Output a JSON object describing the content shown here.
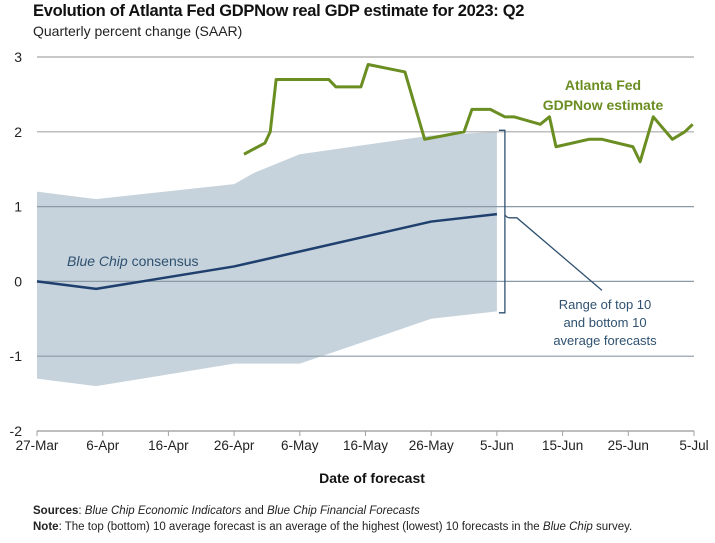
{
  "chart_data": {
    "type": "line",
    "title": "Evolution of Atlanta Fed GDPNow real GDP estimate for 2023: Q2",
    "subtitle": "Quarterly percent change (SAAR)",
    "xlabel": "Date of forecast",
    "ylabel": "",
    "ylim": [
      -2,
      3
    ],
    "yticks": [
      3,
      2,
      1,
      0,
      -1,
      -2
    ],
    "ytick_labels": [
      "3",
      "2",
      "1",
      "0",
      "-1",
      "-2"
    ],
    "x_unit": "days since 27-Mar",
    "xlim": [
      0,
      100
    ],
    "xticks": [
      0,
      10,
      20,
      30,
      40,
      50,
      60,
      70,
      80,
      90,
      100
    ],
    "xtick_labels": [
      "27-Mar",
      "6-Apr",
      "16-Apr",
      "26-Apr",
      "6-May",
      "16-May",
      "26-May",
      "5-Jun",
      "15-Jun",
      "25-Jun",
      "5-Jul"
    ],
    "grid": true,
    "series": [
      {
        "name": "Atlanta Fed GDPNow estimate",
        "color": "#6b8e23",
        "x": [
          31.5,
          34.7,
          35.5,
          36.4,
          44.4,
          45.5,
          49.3,
          50.4,
          56.0,
          59.0,
          65.0,
          66.2,
          69.0,
          71.2,
          72.6,
          76.6,
          78.0,
          79.0,
          84.0,
          86.0,
          90.7,
          91.8,
          93.8,
          96.7,
          98.6,
          99.8
        ],
        "values": [
          1.7,
          1.85,
          2.0,
          2.7,
          2.7,
          2.6,
          2.6,
          2.9,
          2.8,
          1.9,
          2.0,
          2.3,
          2.3,
          2.2,
          2.2,
          2.1,
          2.2,
          1.8,
          1.9,
          1.9,
          1.8,
          1.6,
          2.2,
          1.9,
          2.0,
          2.1
        ]
      },
      {
        "name": "Blue Chip consensus",
        "color": "#1f3f6e",
        "x": [
          0,
          9,
          30,
          40,
          60,
          70
        ],
        "values": [
          0.0,
          -0.1,
          0.2,
          0.4,
          0.8,
          0.9
        ]
      }
    ],
    "range_band": {
      "name": "Range of top 10 and bottom 10 average forecasts",
      "color": "#c6d3dc",
      "x": [
        0,
        9,
        30,
        33,
        40,
        60,
        70
      ],
      "upper": [
        1.2,
        1.1,
        1.3,
        1.45,
        1.7,
        1.95,
        2.0
      ],
      "lower": [
        -1.3,
        -1.4,
        -1.1,
        -1.1,
        -1.1,
        -0.5,
        -0.4
      ]
    },
    "annotations": {
      "gdpnow_label_line1": "Atlanta Fed",
      "gdpnow_label_line2": "GDPNow estimate",
      "bluechip_label_italic": "Blue Chip",
      "bluechip_label_rest": " consensus",
      "range_label_line1": "Range of top 10",
      "range_label_line2": "and bottom 10",
      "range_label_line3": "average forecasts"
    }
  },
  "footer": {
    "sources_label": "Sources",
    "sources_text_1": "Blue Chip Economic Indicators",
    "sources_text_2": " and ",
    "sources_text_3": "Blue Chip Financial Forecasts",
    "note_label": "Note",
    "note_text_1": ": The top (bottom) 10 average forecast is an average of the highest (lowest) 10 forecasts in the ",
    "note_text_2": "Blue Chip",
    "note_text_3": " survey."
  }
}
